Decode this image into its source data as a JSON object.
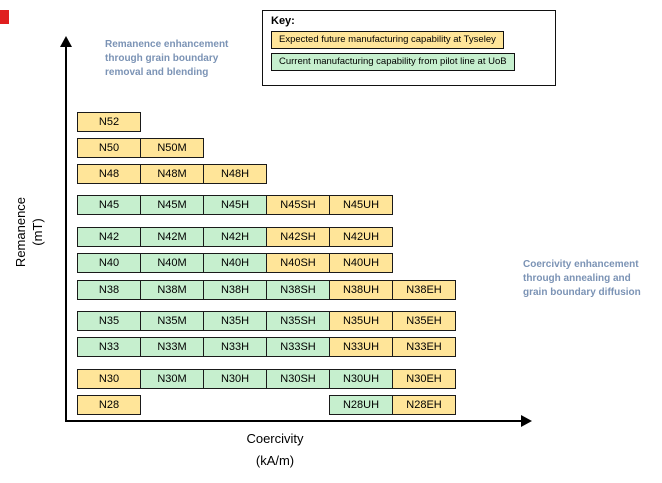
{
  "key": {
    "title": "Key:",
    "items": [
      {
        "type": "future",
        "label": "Expected future manufacturing capability at Tyseley",
        "color": "#ffe599"
      },
      {
        "type": "current",
        "label": "Current manufacturing capability from pilot line at UoB",
        "color": "#c6efce"
      }
    ]
  },
  "annotations": {
    "remanence": "Remanence enhancement through grain boundary removal and blending",
    "coercivity": "Coercivity enhancement through annealing and grain boundary diffusion"
  },
  "axes": {
    "y_label_line1": "Remanence",
    "y_label_line2": "(mT)",
    "x_label_line1": "Coercivity",
    "x_label_line2": "(kA/m)"
  },
  "colors": {
    "future": "#ffe599",
    "current": "#c6efce",
    "annotation_text": "#7b93b5",
    "axis": "#000000",
    "edge_marker": "#e01f1f"
  },
  "grid": {
    "rows": [
      {
        "cells": [
          {
            "label": "N52",
            "col": 0,
            "type": "future"
          }
        ]
      },
      {
        "cells": [
          {
            "label": "N50",
            "col": 0,
            "type": "future"
          },
          {
            "label": "N50M",
            "col": 1,
            "type": "future"
          }
        ]
      },
      {
        "cells": [
          {
            "label": "N48",
            "col": 0,
            "type": "future"
          },
          {
            "label": "N48M",
            "col": 1,
            "type": "future"
          },
          {
            "label": "N48H",
            "col": 2,
            "type": "future"
          }
        ]
      },
      {
        "cells": [
          {
            "label": "N45",
            "col": 0,
            "type": "current"
          },
          {
            "label": "N45M",
            "col": 1,
            "type": "current"
          },
          {
            "label": "N45H",
            "col": 2,
            "type": "current"
          },
          {
            "label": "N45SH",
            "col": 3,
            "type": "future"
          },
          {
            "label": "N45UH",
            "col": 4,
            "type": "future"
          }
        ]
      },
      {
        "cells": [
          {
            "label": "N42",
            "col": 0,
            "type": "current"
          },
          {
            "label": "N42M",
            "col": 1,
            "type": "current"
          },
          {
            "label": "N42H",
            "col": 2,
            "type": "current"
          },
          {
            "label": "N42SH",
            "col": 3,
            "type": "future"
          },
          {
            "label": "N42UH",
            "col": 4,
            "type": "future"
          }
        ]
      },
      {
        "cells": [
          {
            "label": "N40",
            "col": 0,
            "type": "current"
          },
          {
            "label": "N40M",
            "col": 1,
            "type": "current"
          },
          {
            "label": "N40H",
            "col": 2,
            "type": "current"
          },
          {
            "label": "N40SH",
            "col": 3,
            "type": "future"
          },
          {
            "label": "N40UH",
            "col": 4,
            "type": "future"
          }
        ]
      },
      {
        "cells": [
          {
            "label": "N38",
            "col": 0,
            "type": "current"
          },
          {
            "label": "N38M",
            "col": 1,
            "type": "current"
          },
          {
            "label": "N38H",
            "col": 2,
            "type": "current"
          },
          {
            "label": "N38SH",
            "col": 3,
            "type": "current"
          },
          {
            "label": "N38UH",
            "col": 4,
            "type": "future"
          },
          {
            "label": "N38EH",
            "col": 5,
            "type": "future"
          }
        ]
      },
      {
        "cells": [
          {
            "label": "N35",
            "col": 0,
            "type": "current"
          },
          {
            "label": "N35M",
            "col": 1,
            "type": "current"
          },
          {
            "label": "N35H",
            "col": 2,
            "type": "current"
          },
          {
            "label": "N35SH",
            "col": 3,
            "type": "current"
          },
          {
            "label": "N35UH",
            "col": 4,
            "type": "future"
          },
          {
            "label": "N35EH",
            "col": 5,
            "type": "future"
          }
        ]
      },
      {
        "cells": [
          {
            "label": "N33",
            "col": 0,
            "type": "current"
          },
          {
            "label": "N33M",
            "col": 1,
            "type": "current"
          },
          {
            "label": "N33H",
            "col": 2,
            "type": "current"
          },
          {
            "label": "N33SH",
            "col": 3,
            "type": "current"
          },
          {
            "label": "N33UH",
            "col": 4,
            "type": "future"
          },
          {
            "label": "N33EH",
            "col": 5,
            "type": "future"
          }
        ]
      },
      {
        "cells": [
          {
            "label": "N30",
            "col": 0,
            "type": "future"
          },
          {
            "label": "N30M",
            "col": 1,
            "type": "current"
          },
          {
            "label": "N30H",
            "col": 2,
            "type": "current"
          },
          {
            "label": "N30SH",
            "col": 3,
            "type": "current"
          },
          {
            "label": "N30UH",
            "col": 4,
            "type": "current"
          },
          {
            "label": "N30EH",
            "col": 5,
            "type": "future"
          }
        ]
      },
      {
        "cells": [
          {
            "label": "N28",
            "col": 0,
            "type": "future"
          },
          {
            "label": "N28UH",
            "col": 4,
            "type": "current"
          },
          {
            "label": "N28EH",
            "col": 5,
            "type": "future"
          }
        ]
      }
    ]
  }
}
